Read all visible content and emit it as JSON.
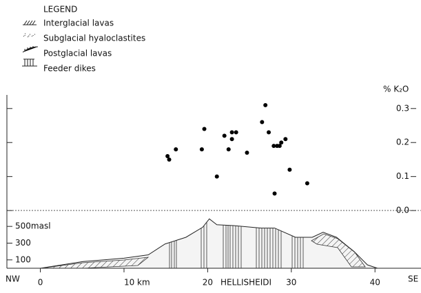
{
  "chart_data": [
    {
      "type": "scatter",
      "y_label": "% K₂O",
      "x": [
        15.2,
        15.4,
        16.2,
        19.3,
        19.6,
        21.1,
        22.0,
        22.5,
        22.9,
        22.9,
        23.4,
        24.7,
        26.5,
        26.9,
        27.3,
        27.9,
        28.3,
        28.6,
        28.8,
        29.3,
        28.0,
        29.8,
        31.9
      ],
      "values": [
        0.16,
        0.15,
        0.18,
        0.18,
        0.24,
        0.1,
        0.22,
        0.18,
        0.21,
        0.23,
        0.23,
        0.17,
        0.26,
        0.31,
        0.23,
        0.19,
        0.19,
        0.19,
        0.2,
        0.21,
        0.05,
        0.12,
        0.08
      ],
      "color": "#000000",
      "xlim": [
        -4,
        45.5
      ],
      "ylim": [
        -0.02,
        0.34
      ],
      "xticks": [
        0,
        {
          "value": 10,
          "label": "10 km"
        },
        20,
        30,
        40
      ],
      "yticks": [
        {
          "value": 0,
          "label": "0.0"
        },
        0.1,
        0.2,
        0.3
      ]
    },
    {
      "type": "area",
      "x_label_left": "NW",
      "x_label_right": "SE",
      "annotation": "HELLISHEIDI",
      "legend_title": "LEGEND",
      "legend_items": [
        "Interglacial lavas",
        "Subglacial hyaloclastites",
        "Postglacial lavas",
        "Feeder dikes"
      ],
      "x": [
        0,
        5.1,
        10,
        12.9,
        14.9,
        17.4,
        19.4,
        20.2,
        21.1,
        23.1,
        26.4,
        28,
        30.5,
        32.5,
        33.8,
        35.4,
        37.5,
        39.1,
        40.3
      ],
      "values": [
        0,
        80,
        120,
        160,
        290,
        370,
        490,
        590,
        520,
        510,
        480,
        480,
        370,
        370,
        430,
        370,
        200,
        40,
        0
      ],
      "color": "#f4f4f4",
      "ylim": [
        0,
        600
      ],
      "yticks": [
        {
          "value": 500,
          "label": "500masl"
        },
        300,
        100
      ]
    }
  ]
}
